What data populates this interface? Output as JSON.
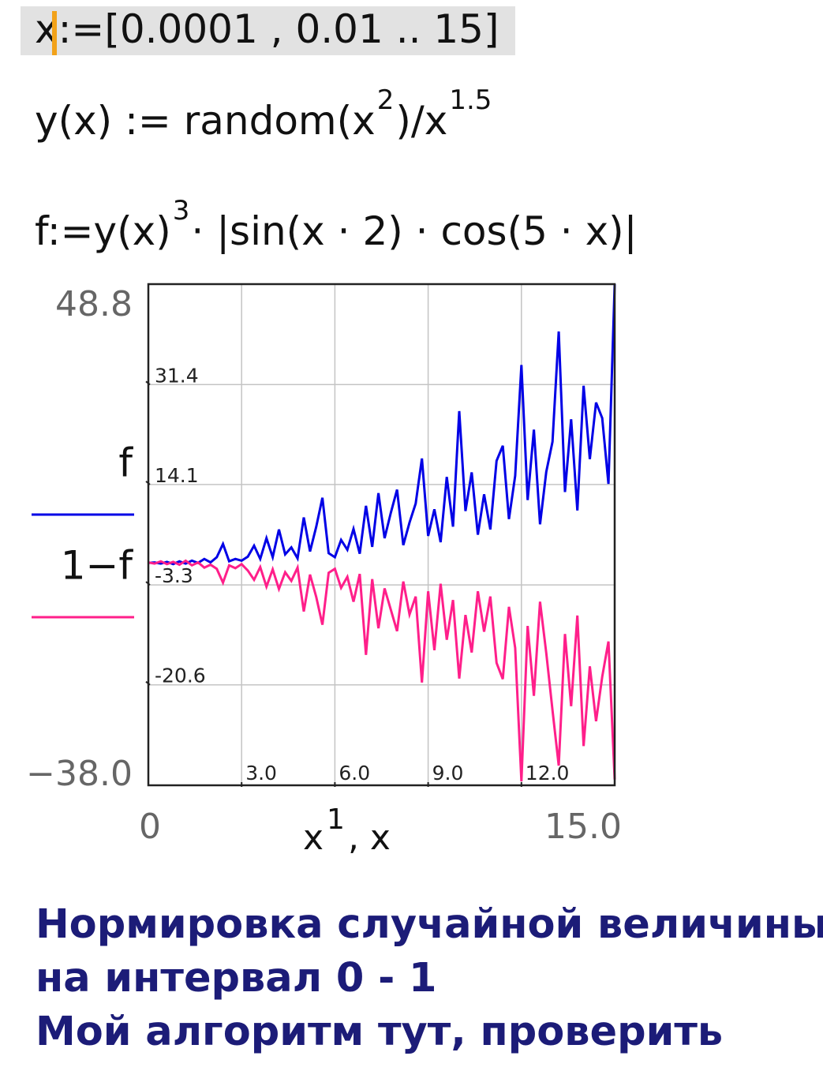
{
  "formulas": [
    {
      "parts": [
        {
          "text": "x:=[0.0001 , 0.01 .. 15]"
        }
      ]
    },
    {
      "parts": [
        {
          "text": "y(x) := random(x"
        },
        {
          "text": "2",
          "sup": true
        },
        {
          "text": ")/x"
        },
        {
          "text": "1.5",
          "sup": true
        }
      ]
    },
    {
      "parts": [
        {
          "text": "f:=y(x)"
        },
        {
          "text": "3",
          "sup": true
        },
        {
          "text": "· |sin(x · 2) · cos(5 · x)|"
        }
      ]
    }
  ],
  "chart_data": {
    "type": "line",
    "x_label_parts": [
      {
        "text": "x"
      },
      {
        "text": "1",
        "sup": true
      },
      {
        "text": ", x"
      }
    ],
    "x": [
      0,
      0.2,
      0.4,
      0.6,
      0.8,
      1.0,
      1.2,
      1.4,
      1.6,
      1.8,
      2.0,
      2.2,
      2.4,
      2.6,
      2.8,
      3.0,
      3.2,
      3.4,
      3.6,
      3.8,
      4.0,
      4.2,
      4.4,
      4.6,
      4.8,
      5.0,
      5.2,
      5.4,
      5.6,
      5.8,
      6.0,
      6.2,
      6.4,
      6.6,
      6.8,
      7.0,
      7.2,
      7.4,
      7.6,
      7.8,
      8.0,
      8.2,
      8.4,
      8.6,
      8.8,
      9.0,
      9.2,
      9.4,
      9.6,
      9.8,
      10.0,
      10.2,
      10.4,
      10.6,
      10.8,
      11.0,
      11.2,
      11.4,
      11.6,
      11.8,
      12.0,
      12.2,
      12.4,
      12.6,
      12.8,
      13.0,
      13.2,
      13.4,
      13.6,
      13.8,
      14.0,
      14.2,
      14.4,
      14.6,
      14.8,
      15.0
    ],
    "series": [
      {
        "name": "f",
        "color": "#0000e6",
        "values": [
          0.5,
          0.6,
          0.4,
          0.7,
          0.3,
          0.8,
          0.4,
          0.9,
          0.5,
          1.2,
          0.6,
          1.5,
          3.8,
          0.8,
          1.2,
          0.9,
          1.6,
          3.5,
          1.2,
          4.8,
          1.5,
          6.3,
          2.0,
          3.2,
          1.3,
          8.4,
          2.5,
          6.8,
          11.8,
          2.2,
          1.5,
          4.5,
          2.8,
          6.4,
          2.1,
          10.4,
          3.3,
          12.6,
          4.8,
          9.2,
          13.2,
          3.6,
          7.5,
          10.8,
          18.6,
          5.2,
          9.8,
          4.1,
          15.4,
          6.8,
          26.8,
          9.5,
          16.2,
          5.4,
          12.4,
          6.3,
          18.2,
          20.8,
          8.1,
          15.6,
          34.8,
          11.4,
          23.6,
          7.2,
          16.3,
          21.5,
          40.6,
          12.8,
          25.4,
          9.6,
          31.2,
          18.5,
          28.3,
          25.6,
          14.2,
          48.8
        ]
      },
      {
        "name": "1−f",
        "color": "#ff1f8a",
        "values": [
          0.6,
          0.4,
          0.8,
          0.3,
          0.7,
          0.2,
          0.9,
          0.1,
          0.6,
          -0.3,
          0.2,
          -0.5,
          -2.9,
          0.1,
          -0.4,
          0.3,
          -0.8,
          -2.4,
          -0.2,
          -3.6,
          -0.6,
          -4.0,
          -1.1,
          -2.6,
          -0.3,
          -7.9,
          -1.5,
          -5.4,
          -10.2,
          -1.2,
          -0.5,
          -3.8,
          -1.9,
          -6.2,
          -1.4,
          -15.4,
          -2.3,
          -10.8,
          -3.9,
          -7.6,
          -11.3,
          -2.7,
          -8.4,
          -5.3,
          -20.2,
          -4.4,
          -14.6,
          -3.1,
          -12.8,
          -5.9,
          -19.5,
          -8.5,
          -15.0,
          -4.4,
          -11.4,
          -5.3,
          -16.8,
          -19.6,
          -7.1,
          -14.2,
          -37.3,
          -10.4,
          -22.5,
          -6.2,
          -15.1,
          -25.0,
          -34.6,
          -11.8,
          -24.3,
          -8.6,
          -31.2,
          -17.4,
          -26.9,
          -19.2,
          -13.1,
          -37.0
        ]
      }
    ],
    "xlim": [
      0,
      15
    ],
    "ylim": [
      -38,
      48.8
    ],
    "xticks": [
      {
        "value": 0,
        "label": "0"
      },
      {
        "value": 3,
        "label": "3.0"
      },
      {
        "value": 6,
        "label": "6.0"
      },
      {
        "value": 9,
        "label": "9.0"
      },
      {
        "value": 12,
        "label": "12.0"
      },
      {
        "value": 15,
        "label": "15.0"
      }
    ],
    "yticks": [
      {
        "value": -38,
        "label": "−38.0"
      },
      -20.6,
      -3.3,
      14.1,
      31.4,
      48.8
    ],
    "grid": true
  },
  "caption": [
    "Нормировка случайной величины",
    "на интервал 0 - 1",
    "Мой алгоритм тут, проверить"
  ]
}
